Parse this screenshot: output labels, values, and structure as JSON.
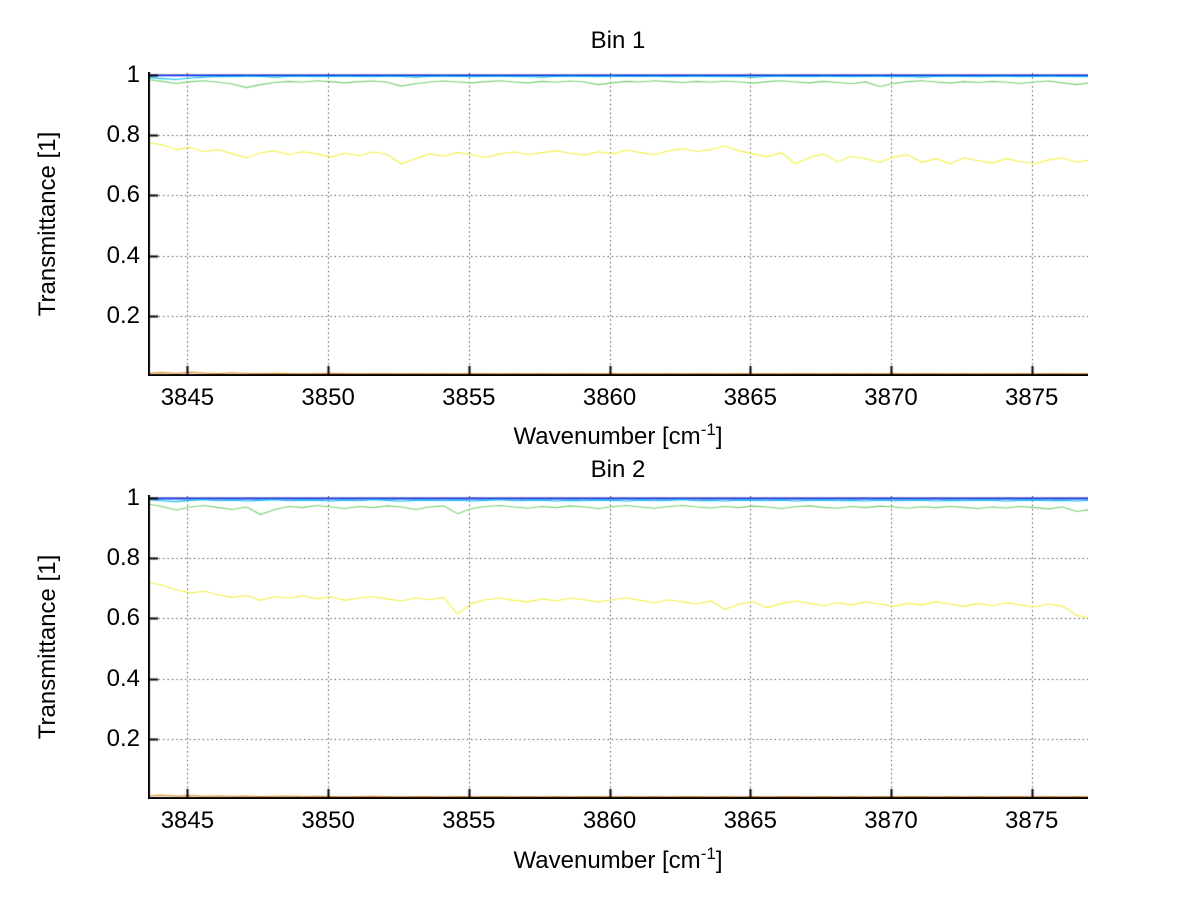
{
  "figure": {
    "background": "#FFFFFF",
    "axis_color": "#000000",
    "grid_color": "#333333",
    "grid_style": "dotted"
  },
  "chart_data": [
    {
      "type": "line",
      "title": "Bin 1",
      "xlabel": "Wavenumber [cm⁻¹]",
      "xlabel_parts": {
        "main": "Wavenumber [cm",
        "sup": "-1",
        "end": "]"
      },
      "ylabel": "Transmittance [1]",
      "xlim": [
        3843.6,
        3877.0
      ],
      "ylim": [
        0,
        1.01
      ],
      "grid": true,
      "legend": null,
      "xticks": [
        3845,
        3850,
        3855,
        3860,
        3865,
        3870,
        3875
      ],
      "xtick_labels": [
        "3845",
        "3850",
        "3855",
        "3860",
        "3865",
        "3870",
        "3875"
      ],
      "yticks": [
        1,
        0.8,
        0.6,
        0.4,
        0.2
      ],
      "ytick_labels": [
        "1",
        "0.8",
        "0.6",
        "0.4",
        "0.2"
      ],
      "x_start": 3843.6,
      "x_step": 0.5,
      "series": [
        {
          "name": "line1-dark-blue",
          "color": "#00008F",
          "y_const": 1.0
        },
        {
          "name": "line2-blue",
          "color": "#0032FF",
          "y_const": 0.998
        },
        {
          "name": "line3-cyan",
          "color": "#12C2F2",
          "values": [
            0.992,
            0.988,
            0.985,
            0.99,
            0.993,
            0.995,
            0.994,
            0.996,
            0.995,
            0.993,
            0.995,
            0.996,
            0.994,
            0.995,
            0.996,
            0.995,
            0.994,
            0.996,
            0.995,
            0.993,
            0.995,
            0.996,
            0.995,
            0.994,
            0.995,
            0.996,
            0.994,
            0.995,
            0.993,
            0.995,
            0.996,
            0.995,
            0.994,
            0.996,
            0.995,
            0.995,
            0.996,
            0.994,
            0.995,
            0.996,
            0.995,
            0.994,
            0.995,
            0.993,
            0.995,
            0.996,
            0.995,
            0.994,
            0.996,
            0.995,
            0.994,
            0.995,
            0.996,
            0.994,
            0.995,
            0.993,
            0.995,
            0.996,
            0.995,
            0.994,
            0.995,
            0.996,
            0.994,
            0.995,
            0.996,
            0.995,
            0.994,
            0.995
          ]
        },
        {
          "name": "line4-green",
          "color": "#77D077",
          "values": [
            0.985,
            0.979,
            0.972,
            0.978,
            0.981,
            0.976,
            0.97,
            0.958,
            0.968,
            0.975,
            0.979,
            0.976,
            0.981,
            0.978,
            0.974,
            0.978,
            0.98,
            0.976,
            0.963,
            0.971,
            0.977,
            0.98,
            0.977,
            0.974,
            0.978,
            0.981,
            0.977,
            0.974,
            0.979,
            0.976,
            0.98,
            0.977,
            0.968,
            0.974,
            0.979,
            0.977,
            0.981,
            0.978,
            0.975,
            0.979,
            0.976,
            0.98,
            0.977,
            0.973,
            0.978,
            0.981,
            0.977,
            0.974,
            0.979,
            0.975,
            0.971,
            0.977,
            0.962,
            0.972,
            0.978,
            0.981,
            0.977,
            0.973,
            0.978,
            0.975,
            0.979,
            0.976,
            0.972,
            0.977,
            0.98,
            0.974,
            0.968,
            0.975
          ]
        },
        {
          "name": "line5-yellow",
          "color": "#F4F14B",
          "values": [
            0.775,
            0.768,
            0.752,
            0.76,
            0.745,
            0.752,
            0.738,
            0.725,
            0.742,
            0.748,
            0.735,
            0.745,
            0.738,
            0.728,
            0.74,
            0.732,
            0.744,
            0.736,
            0.705,
            0.722,
            0.738,
            0.73,
            0.742,
            0.735,
            0.726,
            0.738,
            0.744,
            0.736,
            0.742,
            0.748,
            0.74,
            0.734,
            0.745,
            0.738,
            0.75,
            0.742,
            0.736,
            0.748,
            0.755,
            0.746,
            0.752,
            0.765,
            0.748,
            0.738,
            0.728,
            0.742,
            0.705,
            0.726,
            0.738,
            0.712,
            0.73,
            0.722,
            0.71,
            0.728,
            0.735,
            0.71,
            0.722,
            0.705,
            0.725,
            0.715,
            0.708,
            0.722,
            0.712,
            0.705,
            0.718,
            0.725,
            0.71,
            0.718
          ]
        },
        {
          "name": "line6-orange",
          "color": "#EC9B3B",
          "values": [
            0.01,
            0.012,
            0.009,
            0.013,
            0.01,
            0.008,
            0.011,
            0.009,
            0.008,
            0.009,
            0.008,
            0.007,
            0.008,
            0.009,
            0.008,
            0.007,
            0.008,
            0.008,
            0.007,
            0.008,
            0.007,
            0.008,
            0.007,
            0.008,
            0.008,
            0.007,
            0.008,
            0.007,
            0.008,
            0.007,
            0.008,
            0.008,
            0.007,
            0.008,
            0.007,
            0.008,
            0.007,
            0.008,
            0.007,
            0.008,
            0.008,
            0.007,
            0.008,
            0.007,
            0.008,
            0.007,
            0.008,
            0.008,
            0.007,
            0.008,
            0.007,
            0.008,
            0.007,
            0.008,
            0.007,
            0.008,
            0.008,
            0.007,
            0.008,
            0.007,
            0.008,
            0.007,
            0.008,
            0.007,
            0.008,
            0.008,
            0.007,
            0.008
          ]
        },
        {
          "name": "line7-dark-red",
          "color": "#8B2500",
          "y_const": 0.003
        }
      ]
    },
    {
      "type": "line",
      "title": "Bin 2",
      "xlabel": "Wavenumber [cm⁻¹]",
      "xlabel_parts": {
        "main": "Wavenumber [cm",
        "sup": "-1",
        "end": "]"
      },
      "ylabel": "Transmittance [1]",
      "xlim": [
        3843.6,
        3877.0
      ],
      "ylim": [
        0,
        1.01
      ],
      "grid": true,
      "legend": null,
      "xticks": [
        3845,
        3850,
        3855,
        3860,
        3865,
        3870,
        3875
      ],
      "xtick_labels": [
        "3845",
        "3850",
        "3855",
        "3860",
        "3865",
        "3870",
        "3875"
      ],
      "yticks": [
        1,
        0.8,
        0.6,
        0.4,
        0.2
      ],
      "ytick_labels": [
        "1",
        "0.8",
        "0.6",
        "0.4",
        "0.2"
      ],
      "x_start": 3843.6,
      "x_step": 0.5,
      "series": [
        {
          "name": "line1-dark-blue",
          "color": "#00008F",
          "y_const": 1.0
        },
        {
          "name": "line2-blue",
          "color": "#0032FF",
          "y_const": 0.997
        },
        {
          "name": "line3-cyan",
          "color": "#12C2F2",
          "values": [
            0.994,
            0.991,
            0.988,
            0.992,
            0.994,
            0.991,
            0.993,
            0.99,
            0.992,
            0.994,
            0.991,
            0.993,
            0.992,
            0.99,
            0.993,
            0.991,
            0.994,
            0.992,
            0.989,
            0.992,
            0.993,
            0.991,
            0.993,
            0.99,
            0.992,
            0.994,
            0.991,
            0.992,
            0.993,
            0.99,
            0.992,
            0.991,
            0.993,
            0.992,
            0.99,
            0.993,
            0.991,
            0.992,
            0.994,
            0.991,
            0.992,
            0.99,
            0.993,
            0.992,
            0.991,
            0.993,
            0.99,
            0.992,
            0.993,
            0.991,
            0.992,
            0.99,
            0.993,
            0.991,
            0.992,
            0.993,
            0.99,
            0.992,
            0.991,
            0.993,
            0.992,
            0.99,
            0.992,
            0.993,
            0.991,
            0.992,
            0.99,
            0.992
          ]
        },
        {
          "name": "line4-green",
          "color": "#77D077",
          "values": [
            0.98,
            0.972,
            0.96,
            0.97,
            0.975,
            0.968,
            0.962,
            0.97,
            0.945,
            0.962,
            0.972,
            0.968,
            0.975,
            0.97,
            0.965,
            0.972,
            0.968,
            0.974,
            0.97,
            0.962,
            0.97,
            0.974,
            0.948,
            0.965,
            0.972,
            0.975,
            0.97,
            0.966,
            0.972,
            0.968,
            0.974,
            0.97,
            0.965,
            0.971,
            0.975,
            0.97,
            0.966,
            0.972,
            0.975,
            0.97,
            0.967,
            0.972,
            0.968,
            0.973,
            0.97,
            0.965,
            0.971,
            0.974,
            0.969,
            0.966,
            0.972,
            0.968,
            0.973,
            0.97,
            0.966,
            0.971,
            0.968,
            0.972,
            0.969,
            0.965,
            0.97,
            0.967,
            0.972,
            0.968,
            0.964,
            0.97,
            0.955,
            0.962
          ]
        },
        {
          "name": "line5-yellow",
          "color": "#F4F14B",
          "values": [
            0.72,
            0.71,
            0.695,
            0.685,
            0.69,
            0.678,
            0.67,
            0.676,
            0.66,
            0.672,
            0.668,
            0.675,
            0.665,
            0.672,
            0.66,
            0.668,
            0.672,
            0.665,
            0.658,
            0.668,
            0.662,
            0.67,
            0.615,
            0.65,
            0.662,
            0.668,
            0.66,
            0.655,
            0.665,
            0.658,
            0.668,
            0.662,
            0.655,
            0.662,
            0.668,
            0.66,
            0.652,
            0.662,
            0.655,
            0.648,
            0.658,
            0.63,
            0.648,
            0.655,
            0.635,
            0.65,
            0.658,
            0.65,
            0.642,
            0.652,
            0.645,
            0.655,
            0.648,
            0.64,
            0.65,
            0.645,
            0.655,
            0.648,
            0.64,
            0.65,
            0.642,
            0.652,
            0.645,
            0.638,
            0.648,
            0.64,
            0.61,
            0.6
          ]
        },
        {
          "name": "line6-orange",
          "color": "#EC9B3B",
          "values": [
            0.011,
            0.013,
            0.01,
            0.012,
            0.009,
            0.011,
            0.009,
            0.01,
            0.008,
            0.009,
            0.01,
            0.008,
            0.009,
            0.008,
            0.007,
            0.008,
            0.009,
            0.008,
            0.007,
            0.008,
            0.008,
            0.007,
            0.008,
            0.007,
            0.008,
            0.008,
            0.007,
            0.008,
            0.007,
            0.008,
            0.007,
            0.008,
            0.008,
            0.007,
            0.008,
            0.007,
            0.008,
            0.007,
            0.008,
            0.008,
            0.007,
            0.008,
            0.007,
            0.008,
            0.007,
            0.008,
            0.008,
            0.007,
            0.008,
            0.007,
            0.008,
            0.007,
            0.008,
            0.007,
            0.008,
            0.008,
            0.007,
            0.008,
            0.007,
            0.008,
            0.007,
            0.008,
            0.008,
            0.007,
            0.008,
            0.007,
            0.008,
            0.007
          ]
        },
        {
          "name": "line7-dark-red",
          "color": "#8B2500",
          "y_const": 0.003
        }
      ]
    }
  ]
}
